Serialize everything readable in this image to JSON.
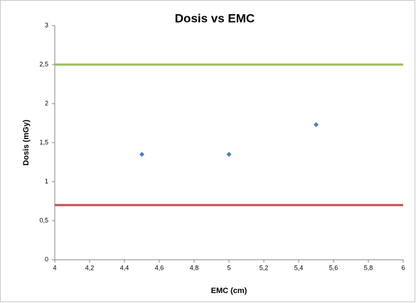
{
  "chart_data": {
    "type": "scatter",
    "title": "Dosis vs EMC",
    "x_label": "EMC (cm)",
    "y_label": "Dosis (mGy)",
    "series": [
      {
        "mode": "markers",
        "color": "#4a7ebb",
        "x": [
          4.5,
          5,
          5.5
        ],
        "values": [
          1.35,
          1.35,
          1.73
        ]
      },
      {
        "mode": "line",
        "color": "#9bbb59",
        "x": [
          4,
          6
        ],
        "values": [
          2.5,
          2.5
        ]
      },
      {
        "mode": "line",
        "color": "#c0504d",
        "x": [
          4,
          6
        ],
        "values": [
          0.7,
          0.7
        ]
      }
    ],
    "xlim": [
      4,
      6
    ],
    "xticks": [
      4,
      {
        "value": 4.2,
        "label": "4,2"
      },
      {
        "value": 4.4,
        "label": "4,4"
      },
      {
        "value": 4.6,
        "label": "4,6"
      },
      {
        "value": 4.8,
        "label": "4,8"
      },
      5,
      {
        "value": 5.2,
        "label": "5,2"
      },
      {
        "value": 5.4,
        "label": "5,4"
      },
      {
        "value": 5.6,
        "label": "5,6"
      },
      {
        "value": 5.8,
        "label": "5,8"
      },
      6
    ],
    "ylim": [
      0,
      3
    ],
    "yticks": [
      0,
      {
        "value": 0.5,
        "label": "0,5"
      },
      1,
      {
        "value": 1.5,
        "label": "1,5"
      },
      2,
      {
        "value": 2.5,
        "label": "2,5"
      },
      3
    ],
    "grid": false
  }
}
